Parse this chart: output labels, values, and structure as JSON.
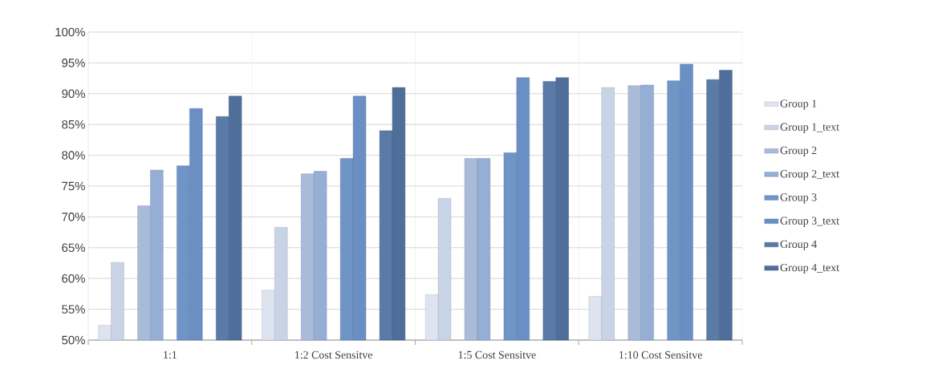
{
  "chart_data": {
    "type": "bar",
    "categories": [
      "1:1",
      "1:2 Cost Sensitve",
      "1:5  Cost Sensitve",
      "1:10  Cost Sensitve"
    ],
    "series": [
      {
        "name": "Group 1",
        "color": "#dde3ef",
        "values": [
          52.4,
          58.1,
          57.4,
          57.1
        ]
      },
      {
        "name": "Group 1_text",
        "color": "#c9d3e6",
        "values": [
          62.6,
          68.3,
          73.0,
          91.0
        ]
      },
      {
        "name": "Group 2",
        "color": "#a9bbd9",
        "values": [
          71.8,
          77.0,
          79.5,
          91.3
        ]
      },
      {
        "name": "Group 2_text",
        "color": "#94aed6",
        "values": [
          77.6,
          77.4,
          79.5,
          91.4
        ]
      },
      {
        "name": "Group 3",
        "color": "#6f94c6",
        "values": [
          78.3,
          79.5,
          80.4,
          92.1
        ]
      },
      {
        "name": "Group 3_text",
        "color": "#6a8fc4",
        "values": [
          87.6,
          89.6,
          92.6,
          94.8
        ]
      },
      {
        "name": "Group 4",
        "color": "#5a7aa8",
        "values": [
          86.3,
          84.0,
          92.0,
          92.3
        ]
      },
      {
        "name": "Group 4_text",
        "color": "#4f6e9a",
        "values": [
          89.6,
          91.0,
          92.6,
          93.8
        ]
      }
    ],
    "ylim": [
      50,
      100
    ],
    "yticks": [
      {
        "value": 50,
        "label": "50%"
      },
      {
        "value": 55,
        "label": "55%"
      },
      {
        "value": 60,
        "label": "60%"
      },
      {
        "value": 65,
        "label": "65%"
      },
      {
        "value": 70,
        "label": "70%"
      },
      {
        "value": 75,
        "label": "75%"
      },
      {
        "value": 80,
        "label": "80%"
      },
      {
        "value": 85,
        "label": "85%"
      },
      {
        "value": 90,
        "label": "90%"
      },
      {
        "value": 95,
        "label": "95%"
      },
      {
        "value": 100,
        "label": "100%"
      }
    ],
    "grid": "y",
    "legend": "right"
  }
}
